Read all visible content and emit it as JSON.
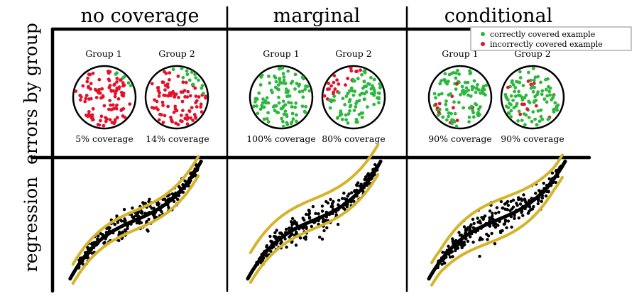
{
  "columns": [
    {
      "key": "none",
      "title": "no coverage",
      "groups": [
        {
          "label": "Group 1",
          "coverage_label": "5% coverage",
          "coverage": 0.05
        },
        {
          "label": "Group 2",
          "coverage_label": "14% coverage",
          "coverage": 0.14
        }
      ],
      "band": "narrow"
    },
    {
      "key": "marginal",
      "title": "marginal",
      "groups": [
        {
          "label": "Group 1",
          "coverage_label": "100% coverage",
          "coverage": 1.0
        },
        {
          "label": "Group 2",
          "coverage_label": "80% coverage",
          "coverage": 0.8
        }
      ],
      "band": "shifted"
    },
    {
      "key": "conditional",
      "title": "conditional",
      "groups": [
        {
          "label": "Group 1",
          "coverage_label": "90% coverage",
          "coverage": 0.9
        },
        {
          "label": "Group 2",
          "coverage_label": "90% coverage",
          "coverage": 0.9
        }
      ],
      "band": "adaptive"
    }
  ],
  "rows": {
    "top": "errors by group",
    "bottom": "regression"
  },
  "legend": {
    "correct": "correctly covered example",
    "incorrect": "incorrectly covered example"
  },
  "colors": {
    "correct": "#2db83d",
    "incorrect": "#e3122b",
    "band": "#d4b42a",
    "fit": "#000000",
    "scatter": "#000000"
  }
}
